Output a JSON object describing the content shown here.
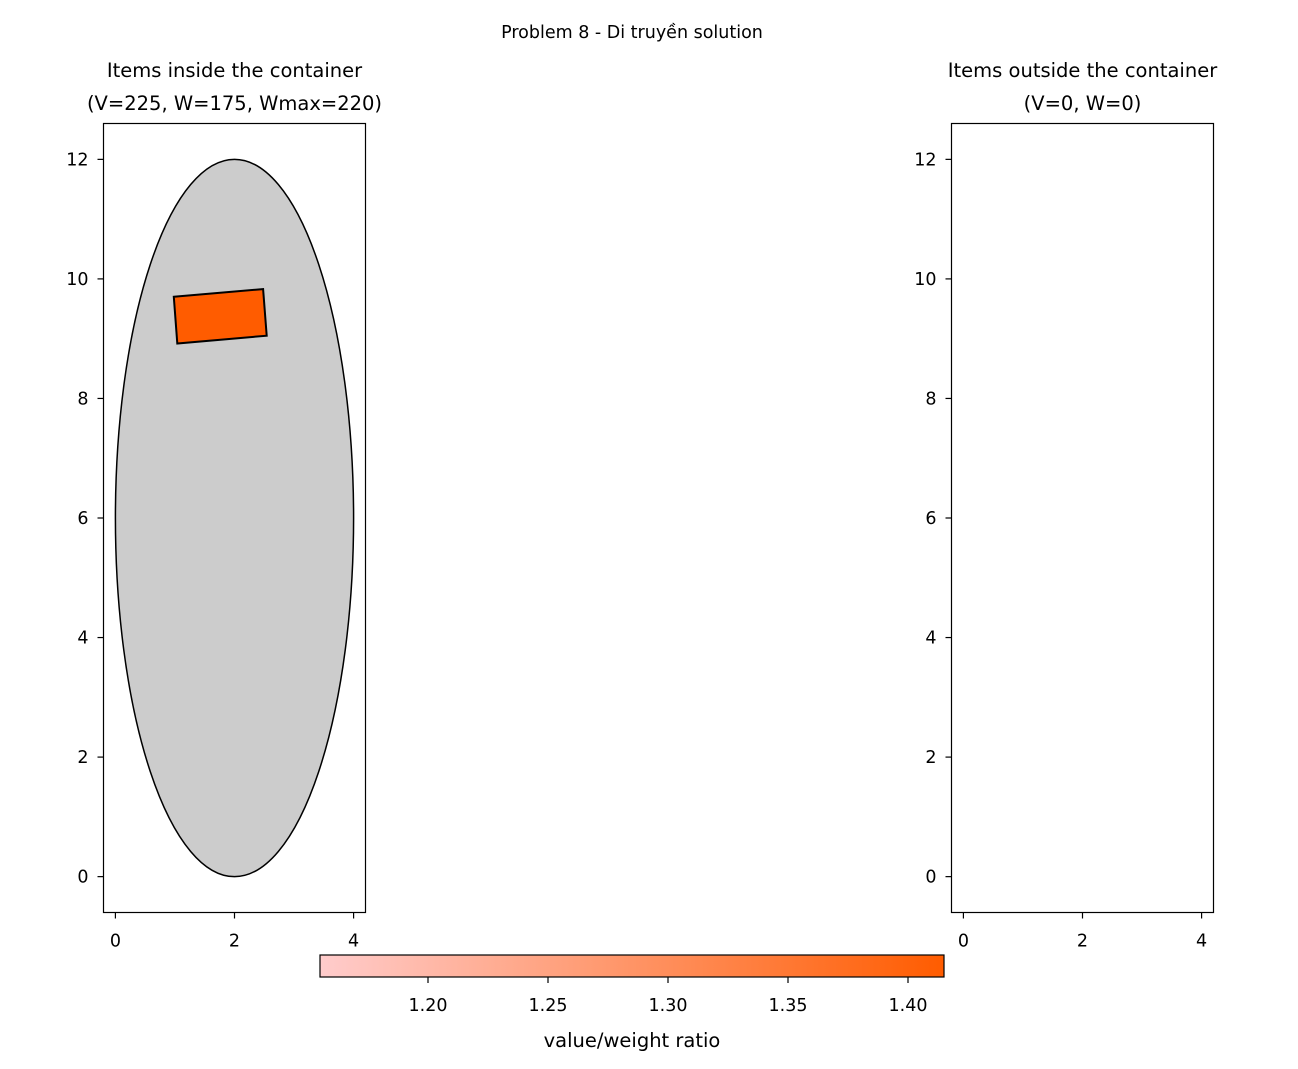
{
  "figure": {
    "suptitle": "Problem 8 - Di truyền solution"
  },
  "chart_data": [
    {
      "type": "scatter",
      "panel": "inside",
      "title_lines": [
        "Items inside the container",
        "(V=225, W=175, Wmax=220)"
      ],
      "xlim": [
        -0.2,
        4.2
      ],
      "ylim": [
        -0.6,
        12.6
      ],
      "xticks": [
        0,
        2,
        4
      ],
      "yticks": [
        0,
        2,
        4,
        6,
        8,
        10,
        12
      ],
      "grid": false,
      "container": {
        "shape": "ellipse",
        "center": [
          2,
          6
        ],
        "width": 4,
        "height": 12,
        "fill": "#cccccc",
        "edge": "#000000"
      },
      "items": [
        {
          "shape": "rectangle",
          "corners": [
            [
              0.98,
              9.7
            ],
            [
              2.48,
              9.83
            ],
            [
              2.54,
              9.05
            ],
            [
              1.04,
              8.92
            ]
          ],
          "ratio": 1.41,
          "fill": "#ff5c00"
        }
      ]
    },
    {
      "type": "scatter",
      "panel": "outside",
      "title_lines": [
        "Items outside the container",
        "(V=0, W=0)"
      ],
      "xlim": [
        -0.2,
        4.2
      ],
      "ylim": [
        -0.6,
        12.6
      ],
      "xticks": [
        0,
        2,
        4
      ],
      "yticks": [
        0,
        2,
        4,
        6,
        8,
        10,
        12
      ],
      "grid": false,
      "items": []
    }
  ],
  "colorbar": {
    "label": "value/weight ratio",
    "range": [
      1.155,
      1.415
    ],
    "ticks": [
      1.2,
      1.25,
      1.3,
      1.35,
      1.4
    ],
    "tick_labels": [
      "1.20",
      "1.25",
      "1.30",
      "1.35",
      "1.40"
    ],
    "color_low": "#ffcccc",
    "color_high": "#ff5c00"
  }
}
